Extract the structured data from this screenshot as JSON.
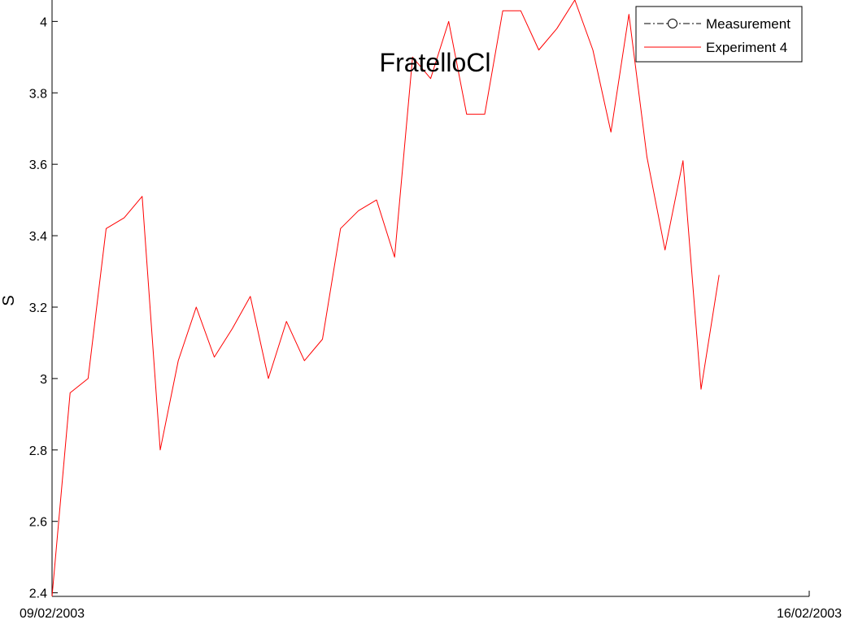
{
  "chart_data": {
    "type": "line",
    "title": "FratelloCl",
    "xlabel": "",
    "ylabel": "S",
    "xlim": [
      "09/02/2003",
      "16/02/2003"
    ],
    "x_tick_labels": [
      "09/02/2003",
      "16/02/2003"
    ],
    "ylim": [
      2.39,
      4.06
    ],
    "y_tick_labels": [
      "2.4",
      "2.6",
      "2.8",
      "3",
      "3.2",
      "3.4",
      "3.6",
      "3.8",
      "4"
    ],
    "grid": false,
    "legend_position": "top-right",
    "series": [
      {
        "name": "Measurement",
        "color": "#000000",
        "style": "dash-dot line with circle markers",
        "x": [],
        "values": []
      },
      {
        "name": "Experiment 4",
        "color": "#ff0000",
        "style": "solid line",
        "x": [
          "09/02/2003 00:00",
          "09/02/2003 04:00",
          "09/02/2003 08:00",
          "09/02/2003 12:00",
          "09/02/2003 16:00",
          "09/02/2003 20:00",
          "10/02/2003 00:00",
          "10/02/2003 04:00",
          "10/02/2003 08:00",
          "10/02/2003 12:00",
          "10/02/2003 16:00",
          "10/02/2003 20:00",
          "11/02/2003 00:00",
          "11/02/2003 04:00",
          "11/02/2003 08:00",
          "11/02/2003 12:00",
          "11/02/2003 16:00",
          "11/02/2003 20:00",
          "12/02/2003 00:00",
          "12/02/2003 04:00",
          "12/02/2003 08:00",
          "12/02/2003 12:00",
          "12/02/2003 16:00",
          "12/02/2003 20:00",
          "13/02/2003 00:00",
          "13/02/2003 04:00",
          "13/02/2003 08:00",
          "13/02/2003 12:00",
          "13/02/2003 16:00",
          "13/02/2003 20:00",
          "14/02/2003 00:00",
          "14/02/2003 04:00",
          "14/02/2003 08:00",
          "14/02/2003 12:00",
          "14/02/2003 16:00",
          "14/02/2003 20:00",
          "15/02/2003 00:00",
          "15/02/2003 04:00"
        ],
        "values": [
          2.39,
          2.96,
          3.0,
          3.42,
          3.45,
          3.51,
          2.8,
          3.05,
          3.2,
          3.06,
          3.14,
          3.23,
          3.0,
          3.16,
          3.05,
          3.11,
          3.42,
          3.47,
          3.5,
          3.34,
          3.9,
          3.84,
          4.0,
          3.74,
          3.74,
          4.03,
          4.03,
          3.92,
          3.98,
          4.06,
          3.92,
          3.69,
          4.02,
          3.62,
          3.36,
          3.61,
          2.97,
          3.29
        ]
      }
    ]
  }
}
